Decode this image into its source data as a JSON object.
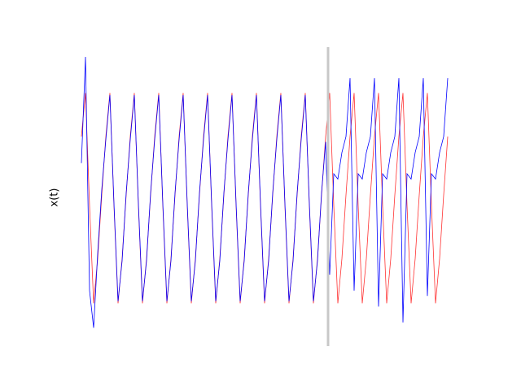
{
  "chart_data": {
    "type": "line",
    "ylabel": "x(t)",
    "x": [
      0,
      1,
      2,
      3,
      4,
      5,
      6,
      7,
      8,
      9,
      10,
      11,
      12,
      13,
      14,
      15,
      16,
      17,
      18,
      19,
      20,
      21,
      22,
      23,
      24,
      25,
      26,
      27,
      28,
      29,
      30,
      31,
      32,
      33,
      34,
      35,
      36,
      37,
      38,
      39,
      40,
      41,
      42,
      43,
      44,
      45,
      46,
      47,
      48,
      49,
      50,
      51,
      52,
      53,
      54,
      55,
      56,
      57,
      58,
      59,
      60,
      61,
      62,
      63,
      64,
      65,
      66,
      67,
      68,
      69,
      70,
      71,
      72,
      73,
      74,
      75,
      76,
      77,
      78,
      79,
      80,
      81,
      82,
      83,
      84,
      85,
      86,
      87,
      88,
      89,
      90
    ],
    "xlim": [
      0,
      90
    ],
    "ylim": [
      -1.3,
      1.3
    ],
    "vline": 60.6,
    "vline_color": "#c8c8c8",
    "series": [
      {
        "color": "#ff3333",
        "values": [
          0.55,
          0.96,
          -0.1,
          -1.02,
          -0.6,
          0.0,
          0.55,
          0.96,
          -0.1,
          -1.02,
          -0.6,
          0.0,
          0.55,
          0.96,
          -0.1,
          -1.02,
          -0.6,
          0.0,
          0.55,
          0.96,
          -0.1,
          -1.02,
          -0.6,
          0.0,
          0.55,
          0.96,
          -0.1,
          -1.02,
          -0.6,
          0.0,
          0.55,
          0.96,
          -0.1,
          -1.02,
          -0.6,
          0.0,
          0.55,
          0.96,
          -0.1,
          -1.02,
          -0.6,
          0.0,
          0.55,
          0.96,
          -0.1,
          -1.02,
          -0.6,
          0.0,
          0.55,
          0.96,
          -0.1,
          -1.02,
          -0.6,
          0.0,
          0.55,
          0.96,
          -0.1,
          -1.02,
          -0.6,
          0.0,
          0.55,
          0.96,
          -0.1,
          -1.02,
          -0.6,
          0.0,
          0.55,
          0.96,
          -0.1,
          -1.02,
          -0.6,
          0.0,
          0.55,
          0.96,
          -0.1,
          -1.02,
          -0.6,
          0.0,
          0.55,
          0.96,
          -0.1,
          -1.02,
          -0.6,
          0.0,
          0.55,
          0.96,
          -0.1,
          -1.02,
          -0.6,
          0.0,
          0.55
        ]
      },
      {
        "color": "#0000ff",
        "values": [
          0.3,
          1.3,
          -0.9,
          -1.25,
          -0.55,
          0.05,
          0.52,
          0.94,
          -0.08,
          -1.0,
          -0.62,
          0.02,
          0.52,
          0.94,
          -0.08,
          -1.0,
          -0.62,
          0.02,
          0.52,
          0.94,
          -0.08,
          -1.0,
          -0.62,
          0.02,
          0.52,
          0.94,
          -0.08,
          -1.0,
          -0.62,
          0.02,
          0.52,
          0.94,
          -0.08,
          -1.0,
          -0.62,
          0.02,
          0.52,
          0.94,
          -0.08,
          -1.0,
          -0.62,
          0.02,
          0.52,
          0.94,
          -0.08,
          -1.0,
          -0.62,
          0.02,
          0.52,
          0.94,
          -0.08,
          -1.0,
          -0.62,
          0.02,
          0.52,
          0.94,
          -0.08,
          -1.0,
          -0.62,
          0.02,
          0.5,
          -0.75,
          0.2,
          0.15,
          0.4,
          0.55,
          1.1,
          -0.9,
          0.2,
          0.15,
          0.4,
          0.55,
          1.1,
          -1.05,
          0.2,
          0.15,
          0.4,
          0.55,
          1.1,
          -1.2,
          0.2,
          0.15,
          0.4,
          0.55,
          1.1,
          -0.95,
          0.2,
          0.15,
          0.4,
          0.55,
          1.1
        ]
      }
    ]
  }
}
